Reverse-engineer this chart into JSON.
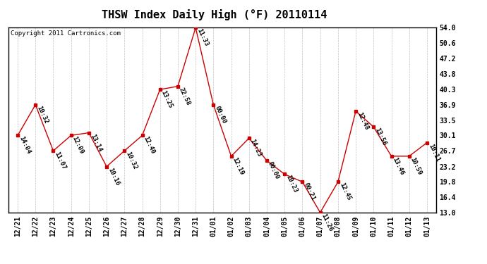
{
  "title": "THSW Index Daily High (°F) 20110114",
  "copyright": "Copyright 2011 Cartronics.com",
  "line_color": "#cc0000",
  "marker_color": "#cc0000",
  "bg_color": "#ffffff",
  "grid_color": "#bbbbbb",
  "ylim": [
    13.0,
    54.0
  ],
  "yticks": [
    13.0,
    16.4,
    19.8,
    23.2,
    26.7,
    30.1,
    33.5,
    36.9,
    40.3,
    43.8,
    47.2,
    50.6,
    54.0
  ],
  "dates": [
    "12/21",
    "12/22",
    "12/23",
    "12/24",
    "12/25",
    "12/26",
    "12/27",
    "12/28",
    "12/29",
    "12/30",
    "12/31",
    "01/01",
    "01/02",
    "01/03",
    "01/04",
    "01/05",
    "01/06",
    "01/07",
    "01/08",
    "01/09",
    "01/10",
    "01/11",
    "01/12",
    "01/13"
  ],
  "values": [
    30.1,
    36.9,
    26.7,
    30.1,
    30.7,
    23.2,
    26.7,
    30.1,
    40.3,
    41.0,
    54.0,
    36.9,
    25.5,
    29.5,
    24.5,
    21.5,
    19.8,
    13.0,
    19.8,
    35.5,
    32.0,
    25.5,
    25.5,
    28.5
  ],
  "times": [
    "14:04",
    "10:32",
    "11:07",
    "12:09",
    "13:14",
    "10:16",
    "10:32",
    "12:40",
    "13:25",
    "22:58",
    "11:33",
    "00:00",
    "12:19",
    "14:23",
    "00:00",
    "10:23",
    "00:21",
    "11:26",
    "12:45",
    "12:48",
    "13:56",
    "13:46",
    "10:59",
    "10:11"
  ],
  "title_fontsize": 11,
  "label_fontsize": 6.5,
  "tick_fontsize": 7,
  "copyright_fontsize": 6.5
}
